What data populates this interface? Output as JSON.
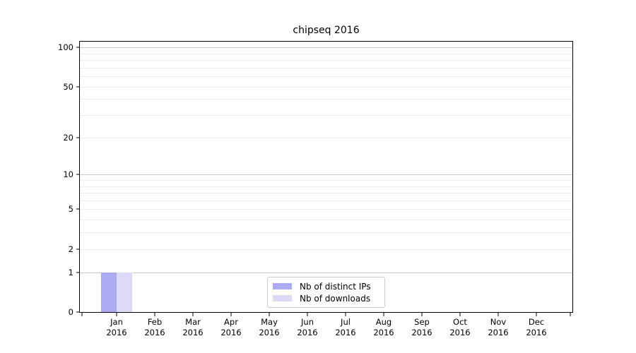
{
  "figure": {
    "title": "chipseq 2016",
    "background": "#ffffff"
  },
  "chart_data": {
    "type": "bar",
    "title": "chipseq 2016",
    "categories": [
      "Jan 2016",
      "Feb 2016",
      "Mar 2016",
      "Apr 2016",
      "May 2016",
      "Jun 2016",
      "Jul 2016",
      "Aug 2016",
      "Sep 2016",
      "Oct 2016",
      "Nov 2016",
      "Dec 2016"
    ],
    "series": [
      {
        "name": "Nb of distinct IPs",
        "color": "#ababf3",
        "values": [
          1,
          0,
          0,
          0,
          0,
          0,
          0,
          0,
          0,
          0,
          0,
          0
        ]
      },
      {
        "name": "Nb of downloads",
        "color": "#dbdbf8",
        "values": [
          1,
          0,
          0,
          0,
          0,
          0,
          0,
          0,
          0,
          0,
          0,
          0
        ]
      }
    ],
    "xlabel": "",
    "ylabel": "",
    "y_scale": "log1p",
    "ylim": [
      0,
      110
    ],
    "y_ticks": [
      0,
      1,
      2,
      5,
      10,
      20,
      50,
      100
    ],
    "y_major_gridlines": [
      1,
      10,
      100
    ],
    "y_minor_gridlines": [
      2,
      3,
      4,
      5,
      6,
      7,
      8,
      9,
      20,
      30,
      40,
      50,
      60,
      70,
      80,
      90
    ],
    "grid": "horizontal",
    "legend": {
      "position": "bottom-center"
    }
  },
  "colors": {
    "axis": "#000000",
    "major_grid": "#c9c9c9",
    "minor_grid": "#ededed",
    "legend_border": "#cccccc",
    "background": "#ffffff"
  }
}
